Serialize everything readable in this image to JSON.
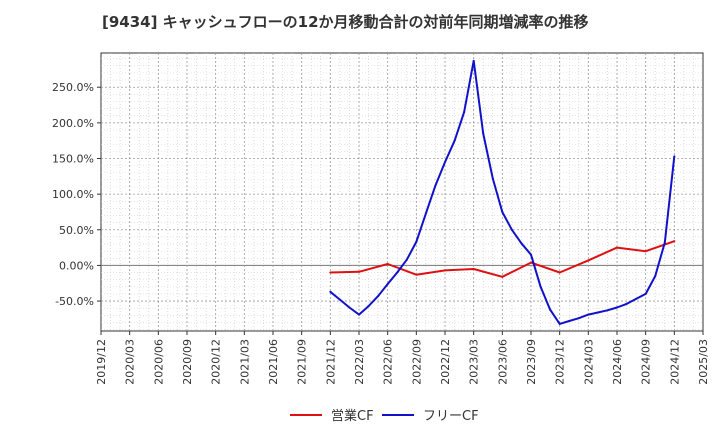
{
  "chart_data": {
    "type": "line",
    "title": "[9434]  キャッシュフローの12か月移動合計の対前年同期増減率の推移",
    "xlabel": "",
    "ylabel": "",
    "x_ticks": [
      "2019/12",
      "2020/03",
      "2020/06",
      "2020/09",
      "2020/12",
      "2021/03",
      "2021/06",
      "2021/09",
      "2021/12",
      "2022/03",
      "2022/06",
      "2022/09",
      "2022/12",
      "2023/03",
      "2023/06",
      "2023/09",
      "2023/12",
      "2024/03",
      "2024/06",
      "2024/09",
      "2024/12",
      "2025/03"
    ],
    "y_ticks": [
      {
        "value": 250,
        "label": "250.0%"
      },
      {
        "value": 200,
        "label": "200.0%"
      },
      {
        "value": 150,
        "label": "150.0%"
      },
      {
        "value": 100,
        "label": "100.0%"
      },
      {
        "value": 50,
        "label": "50.0%"
      },
      {
        "value": 0,
        "label": "0.00%"
      },
      {
        "value": -50,
        "label": "-50.0%"
      }
    ],
    "ylim": [
      -92,
      298
    ],
    "xlim_months": [
      0,
      63
    ],
    "grid": true,
    "legend_position": "bottom",
    "series": [
      {
        "name": "営業CF",
        "color": "#dd1111",
        "months": [
          24,
          27,
          30,
          33,
          36,
          39,
          42,
          45,
          48,
          51,
          54,
          57,
          60
        ],
        "values": [
          -10,
          -9,
          2,
          -13,
          -7,
          -5,
          -16,
          4,
          -10,
          7,
          25,
          20,
          34
        ]
      },
      {
        "name": "フリーCF",
        "color": "#1111cc",
        "months": [
          24,
          25,
          26,
          27,
          28,
          29,
          30,
          31,
          32,
          33,
          34,
          35,
          36,
          37,
          38,
          39,
          40,
          41,
          42,
          43,
          44,
          45,
          46,
          47,
          48,
          49,
          50,
          51,
          52,
          53,
          54,
          55,
          56,
          57,
          58,
          59,
          60
        ],
        "values": [
          -37,
          -48,
          -59,
          -69,
          -57,
          -43,
          -26,
          -10,
          8,
          33,
          73,
          112,
          145,
          175,
          215,
          287,
          185,
          122,
          75,
          50,
          31,
          15,
          -30,
          -62,
          -82,
          -78,
          -74,
          -69,
          -66,
          -63,
          -59,
          -54,
          -47,
          -40,
          -15,
          32,
          153
        ]
      }
    ]
  }
}
